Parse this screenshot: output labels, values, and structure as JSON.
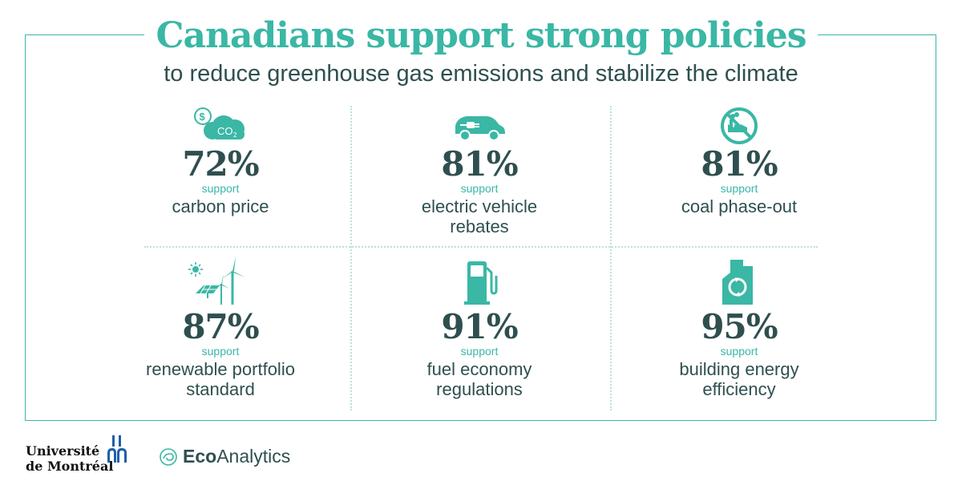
{
  "title": "Canadians support strong policies",
  "subtitle": "to reduce greenhouse gas emissions and stabilize the climate",
  "accent_color": "#3ab7a5",
  "text_color": "#2f4f4f",
  "policies": [
    {
      "percent": "72%",
      "support": "support",
      "label_line1": "carbon price",
      "label_line2": "",
      "icon": "carbon-price-icon"
    },
    {
      "percent": "81%",
      "support": "support",
      "label_line1": "electric vehicle",
      "label_line2": "rebates",
      "icon": "electric-car-icon"
    },
    {
      "percent": "81%",
      "support": "support",
      "label_line1": "coal phase-out",
      "label_line2": "",
      "icon": "no-factory-icon"
    },
    {
      "percent": "87%",
      "support": "support",
      "label_line1": "renewable portfolio",
      "label_line2": "standard",
      "icon": "renewables-icon"
    },
    {
      "percent": "91%",
      "support": "support",
      "label_line1": "fuel economy",
      "label_line2": "regulations",
      "icon": "fuel-pump-icon"
    },
    {
      "percent": "95%",
      "support": "support",
      "label_line1": "building energy",
      "label_line2": "efficiency",
      "icon": "efficient-building-icon"
    }
  ],
  "footer": {
    "udem_line1": "Université",
    "udem_line2": "de Montréal",
    "eco_bold": "Eco",
    "eco_regular": "Analytics"
  }
}
